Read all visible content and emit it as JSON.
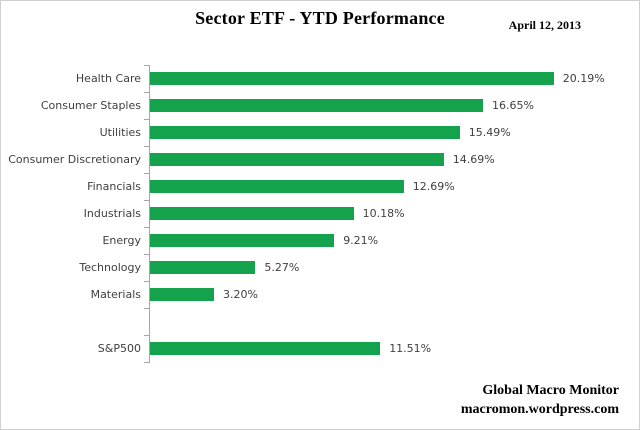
{
  "title": "Sector ETF - YTD Performance",
  "date": "April 12, 2013",
  "footer": {
    "line1": "Global Macro Monitor",
    "line2": "macromon.wordpress.com"
  },
  "chart_data": {
    "type": "bar",
    "orientation": "horizontal",
    "title": "Sector ETF - YTD Performance",
    "xlabel": "",
    "ylabel": "",
    "categories": [
      "Health Care",
      "Consumer Staples",
      "Utilities",
      "Consumer Discretionary",
      "Financials",
      "Industrials",
      "Energy",
      "Technology",
      "Materials",
      "",
      "S&P500"
    ],
    "values": [
      20.19,
      16.65,
      15.49,
      14.69,
      12.69,
      10.18,
      9.21,
      5.27,
      3.2,
      null,
      11.51
    ],
    "value_labels": [
      "20.19%",
      "16.65%",
      "15.49%",
      "14.69%",
      "12.69%",
      "10.18%",
      "9.21%",
      "5.27%",
      "3.20%",
      "",
      "11.51%"
    ],
    "xlim": [
      0,
      24
    ],
    "x_axis_labels_visible": false,
    "grid": false,
    "legend": false,
    "bar_color": "#14a24c",
    "axis_color": "#a6a6a6",
    "label_color": "#3f3f3f",
    "value_label_color": "#404040"
  }
}
